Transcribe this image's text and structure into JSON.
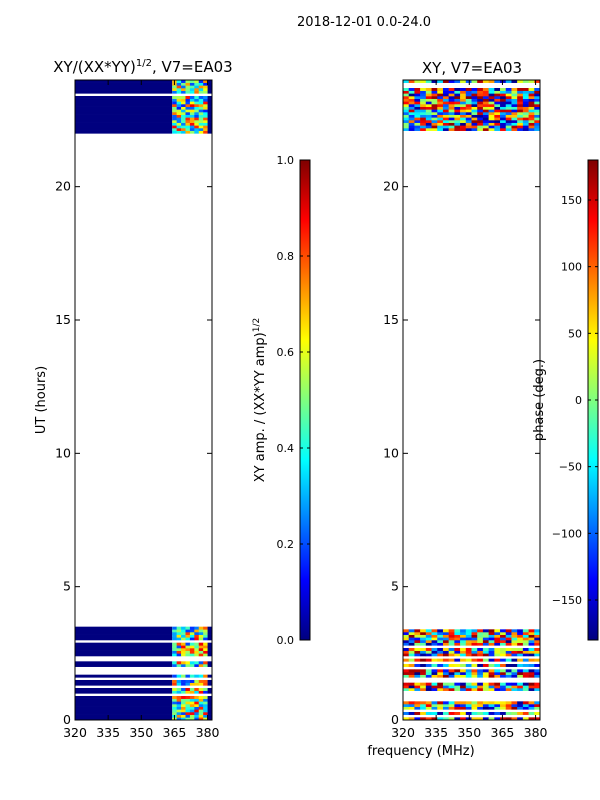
{
  "figure": {
    "suptitle": "2018-12-01 0.0-24.0",
    "xlabel": "frequency (MHz)"
  },
  "colors": {
    "jet_stops": [
      "#00007f",
      "#0000ff",
      "#007fff",
      "#00ffff",
      "#7fff7f",
      "#ffff00",
      "#ff7f00",
      "#ff0000",
      "#7f0000"
    ],
    "background": "#ffffff",
    "axis": "#000000"
  },
  "chart_data": [
    {
      "type": "heatmap",
      "title_main": "XY/(XX*YY)",
      "title_exp": "1/2",
      "title_suffix": ", V7=EA03",
      "ylabel": "UT (hours)",
      "xlim": [
        320,
        382
      ],
      "ylim": [
        0,
        24
      ],
      "xticks": [
        320,
        335,
        350,
        365,
        380
      ],
      "yticks": [
        0,
        5,
        10,
        15,
        20
      ],
      "data_time_ranges_hours": [
        [
          0,
          3.6
        ],
        [
          22,
          24
        ]
      ],
      "data_freq_range_mhz": [
        364,
        380
      ],
      "colorbar": {
        "label_main": "XY amp. / (XX*YY amp)",
        "label_exp": "1/2",
        "range": [
          0.0,
          1.0
        ],
        "ticks": [
          "0.0",
          "0.2",
          "0.4",
          "0.6",
          "0.8",
          "1.0"
        ]
      }
    },
    {
      "type": "heatmap",
      "title_main": "XY, V7=EA03",
      "ylabel": "",
      "xlim": [
        320,
        382
      ],
      "ylim": [
        0,
        24
      ],
      "xticks": [
        320,
        335,
        350,
        365,
        380
      ],
      "yticks": [
        0,
        5,
        10,
        15,
        20
      ],
      "data_time_ranges_hours": [
        [
          0,
          3.6
        ],
        [
          22,
          24
        ]
      ],
      "data_freq_range_mhz": [
        320,
        382
      ],
      "colorbar": {
        "label_main": "phase (deg.)",
        "range": [
          -180,
          180
        ],
        "ticks": [
          "−150",
          "−100",
          "−50",
          "0",
          "50",
          "100",
          "150"
        ]
      }
    }
  ]
}
